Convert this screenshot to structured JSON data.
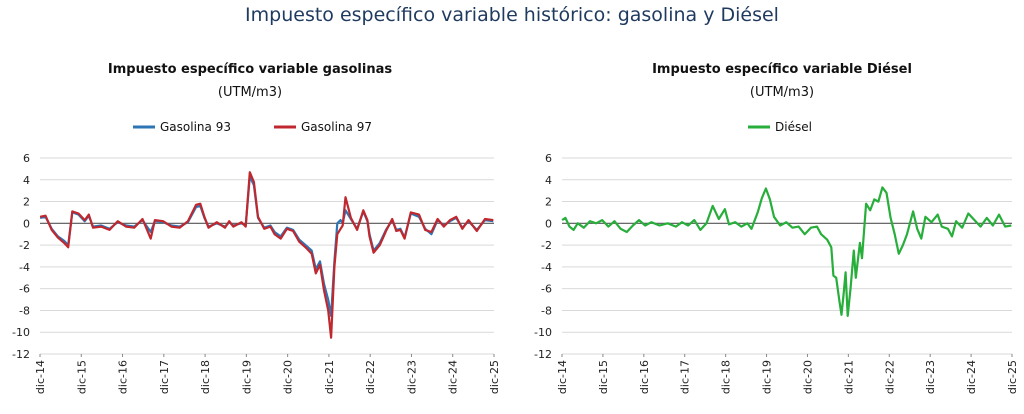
{
  "main_title": "Impuesto específico variable histórico: gasolina y Diésel",
  "colors": {
    "gasolina93": "#2e75b6",
    "gasolina97": "#c0282f",
    "diesel": "#27ae3b",
    "grid": "#d9d9d9"
  },
  "chart_data": [
    {
      "type": "line",
      "title": "Impuesto específico variable gasolinas",
      "subtitle": "(UTM/m3)",
      "legend_position": "top",
      "grid": true,
      "ylim": [
        -12,
        6
      ],
      "yticks": [
        6,
        4,
        2,
        0,
        -2,
        -4,
        -6,
        -8,
        -10,
        -12
      ],
      "xticks": [
        "dic-14",
        "dic-15",
        "dic-16",
        "dic-17",
        "dic-18",
        "dic-19",
        "dic-20",
        "dic-21",
        "dic-22",
        "dic-23",
        "dic-24",
        "dic-25"
      ],
      "x_range": [
        2014.917,
        2025.917
      ],
      "series": [
        {
          "name": "Gasolina 93",
          "color_key": "gasolina93",
          "points": [
            [
              2014.92,
              0.5
            ],
            [
              2015.05,
              0.6
            ],
            [
              2015.2,
              -0.5
            ],
            [
              2015.35,
              -1.2
            ],
            [
              2015.5,
              -1.6
            ],
            [
              2015.6,
              -2.0
            ],
            [
              2015.7,
              1.0
            ],
            [
              2015.85,
              0.8
            ],
            [
              2016.0,
              0.2
            ],
            [
              2016.1,
              0.7
            ],
            [
              2016.2,
              -0.3
            ],
            [
              2016.4,
              -0.2
            ],
            [
              2016.6,
              -0.5
            ],
            [
              2016.8,
              0.1
            ],
            [
              2017.0,
              -0.2
            ],
            [
              2017.2,
              -0.3
            ],
            [
              2017.4,
              0.3
            ],
            [
              2017.6,
              -0.8
            ],
            [
              2017.7,
              0.2
            ],
            [
              2017.9,
              0.1
            ],
            [
              2018.1,
              -0.2
            ],
            [
              2018.3,
              -0.3
            ],
            [
              2018.5,
              0.1
            ],
            [
              2018.7,
              1.5
            ],
            [
              2018.8,
              1.6
            ],
            [
              2018.9,
              0.5
            ],
            [
              2019.0,
              -0.3
            ],
            [
              2019.2,
              0.0
            ],
            [
              2019.4,
              -0.3
            ],
            [
              2019.5,
              0.1
            ],
            [
              2019.6,
              -0.2
            ],
            [
              2019.8,
              0.0
            ],
            [
              2019.9,
              -0.2
            ],
            [
              2020.0,
              4.3
            ],
            [
              2020.1,
              3.5
            ],
            [
              2020.2,
              0.5
            ],
            [
              2020.35,
              -0.4
            ],
            [
              2020.5,
              -0.2
            ],
            [
              2020.6,
              -0.8
            ],
            [
              2020.75,
              -1.2
            ],
            [
              2020.9,
              -0.4
            ],
            [
              2021.05,
              -0.6
            ],
            [
              2021.2,
              -1.5
            ],
            [
              2021.35,
              -2.0
            ],
            [
              2021.5,
              -2.5
            ],
            [
              2021.6,
              -4.2
            ],
            [
              2021.7,
              -3.5
            ],
            [
              2021.8,
              -5.6
            ],
            [
              2021.9,
              -7.0
            ],
            [
              2021.97,
              -8.5
            ],
            [
              2022.05,
              -3.5
            ],
            [
              2022.12,
              0.0
            ],
            [
              2022.2,
              0.3
            ],
            [
              2022.25,
              0.0
            ],
            [
              2022.32,
              1.2
            ],
            [
              2022.45,
              0.4
            ],
            [
              2022.6,
              -0.5
            ],
            [
              2022.75,
              1.1
            ],
            [
              2022.85,
              0.2
            ],
            [
              2022.9,
              -1.0
            ],
            [
              2023.0,
              -2.5
            ],
            [
              2023.15,
              -1.8
            ],
            [
              2023.3,
              -0.6
            ],
            [
              2023.45,
              0.3
            ],
            [
              2023.55,
              -0.6
            ],
            [
              2023.65,
              -0.5
            ],
            [
              2023.75,
              -1.3
            ],
            [
              2023.9,
              0.9
            ],
            [
              2024.1,
              0.6
            ],
            [
              2024.25,
              -0.5
            ],
            [
              2024.4,
              -1.0
            ],
            [
              2024.55,
              0.3
            ],
            [
              2024.7,
              -0.2
            ],
            [
              2024.85,
              0.2
            ],
            [
              2025.0,
              0.5
            ],
            [
              2025.15,
              -0.4
            ],
            [
              2025.3,
              0.2
            ],
            [
              2025.5,
              -0.6
            ],
            [
              2025.7,
              0.3
            ],
            [
              2025.9,
              0.2
            ]
          ]
        },
        {
          "name": "Gasolina 97",
          "color_key": "gasolina97",
          "points": [
            [
              2014.92,
              0.6
            ],
            [
              2015.05,
              0.7
            ],
            [
              2015.2,
              -0.6
            ],
            [
              2015.35,
              -1.3
            ],
            [
              2015.5,
              -1.8
            ],
            [
              2015.6,
              -2.2
            ],
            [
              2015.7,
              1.1
            ],
            [
              2015.85,
              0.9
            ],
            [
              2016.0,
              0.3
            ],
            [
              2016.1,
              0.8
            ],
            [
              2016.2,
              -0.4
            ],
            [
              2016.4,
              -0.3
            ],
            [
              2016.6,
              -0.6
            ],
            [
              2016.8,
              0.2
            ],
            [
              2017.0,
              -0.3
            ],
            [
              2017.2,
              -0.4
            ],
            [
              2017.4,
              0.4
            ],
            [
              2017.6,
              -1.4
            ],
            [
              2017.7,
              0.3
            ],
            [
              2017.9,
              0.2
            ],
            [
              2018.1,
              -0.3
            ],
            [
              2018.3,
              -0.4
            ],
            [
              2018.5,
              0.2
            ],
            [
              2018.7,
              1.7
            ],
            [
              2018.8,
              1.8
            ],
            [
              2018.9,
              0.6
            ],
            [
              2019.0,
              -0.4
            ],
            [
              2019.2,
              0.1
            ],
            [
              2019.4,
              -0.4
            ],
            [
              2019.5,
              0.2
            ],
            [
              2019.6,
              -0.3
            ],
            [
              2019.8,
              0.1
            ],
            [
              2019.9,
              -0.3
            ],
            [
              2020.0,
              4.7
            ],
            [
              2020.1,
              3.8
            ],
            [
              2020.2,
              0.6
            ],
            [
              2020.35,
              -0.5
            ],
            [
              2020.5,
              -0.3
            ],
            [
              2020.6,
              -1.0
            ],
            [
              2020.75,
              -1.4
            ],
            [
              2020.9,
              -0.5
            ],
            [
              2021.05,
              -0.7
            ],
            [
              2021.2,
              -1.7
            ],
            [
              2021.35,
              -2.2
            ],
            [
              2021.5,
              -2.8
            ],
            [
              2021.6,
              -4.6
            ],
            [
              2021.7,
              -3.8
            ],
            [
              2021.8,
              -6.2
            ],
            [
              2021.9,
              -8.0
            ],
            [
              2021.97,
              -10.5
            ],
            [
              2022.05,
              -4.0
            ],
            [
              2022.12,
              -1.0
            ],
            [
              2022.2,
              -0.5
            ],
            [
              2022.25,
              -0.2
            ],
            [
              2022.32,
              2.4
            ],
            [
              2022.45,
              0.5
            ],
            [
              2022.6,
              -0.6
            ],
            [
              2022.75,
              1.2
            ],
            [
              2022.85,
              0.3
            ],
            [
              2022.9,
              -1.2
            ],
            [
              2023.0,
              -2.7
            ],
            [
              2023.15,
              -2.0
            ],
            [
              2023.3,
              -0.7
            ],
            [
              2023.45,
              0.4
            ],
            [
              2023.55,
              -0.7
            ],
            [
              2023.65,
              -0.6
            ],
            [
              2023.75,
              -1.4
            ],
            [
              2023.9,
              1.0
            ],
            [
              2024.1,
              0.8
            ],
            [
              2024.25,
              -0.6
            ],
            [
              2024.4,
              -0.8
            ],
            [
              2024.55,
              0.4
            ],
            [
              2024.7,
              -0.3
            ],
            [
              2024.85,
              0.3
            ],
            [
              2025.0,
              0.6
            ],
            [
              2025.15,
              -0.5
            ],
            [
              2025.3,
              0.3
            ],
            [
              2025.5,
              -0.7
            ],
            [
              2025.7,
              0.4
            ],
            [
              2025.9,
              0.3
            ]
          ]
        }
      ]
    },
    {
      "type": "line",
      "title": "Impuesto específico variable Diésel",
      "subtitle": "(UTM/m3)",
      "legend_position": "top",
      "grid": true,
      "ylim": [
        -12,
        6
      ],
      "yticks": [
        6,
        4,
        2,
        0,
        -2,
        -4,
        -6,
        -8,
        -10,
        -12
      ],
      "xticks": [
        "dic-14",
        "dic-15",
        "dic-16",
        "dic-17",
        "dic-18",
        "dic-19",
        "dic-20",
        "dic-21",
        "dic-22",
        "dic-23",
        "dic-24",
        "dic-25"
      ],
      "x_range": [
        2014.917,
        2025.917
      ],
      "series": [
        {
          "name": "Diésel",
          "color_key": "diesel",
          "points": [
            [
              2014.92,
              0.3
            ],
            [
              2015.0,
              0.5
            ],
            [
              2015.1,
              -0.3
            ],
            [
              2015.2,
              -0.6
            ],
            [
              2015.3,
              0.0
            ],
            [
              2015.45,
              -0.4
            ],
            [
              2015.6,
              0.2
            ],
            [
              2015.75,
              0.0
            ],
            [
              2015.9,
              0.3
            ],
            [
              2016.05,
              -0.3
            ],
            [
              2016.2,
              0.2
            ],
            [
              2016.35,
              -0.5
            ],
            [
              2016.5,
              -0.8
            ],
            [
              2016.65,
              -0.2
            ],
            [
              2016.8,
              0.3
            ],
            [
              2016.95,
              -0.2
            ],
            [
              2017.1,
              0.1
            ],
            [
              2017.3,
              -0.2
            ],
            [
              2017.5,
              0.0
            ],
            [
              2017.7,
              -0.3
            ],
            [
              2017.85,
              0.1
            ],
            [
              2018.0,
              -0.2
            ],
            [
              2018.15,
              0.3
            ],
            [
              2018.3,
              -0.6
            ],
            [
              2018.45,
              0.0
            ],
            [
              2018.6,
              1.6
            ],
            [
              2018.75,
              0.4
            ],
            [
              2018.9,
              1.3
            ],
            [
              2019.0,
              -0.1
            ],
            [
              2019.15,
              0.1
            ],
            [
              2019.3,
              -0.3
            ],
            [
              2019.45,
              0.0
            ],
            [
              2019.55,
              -0.5
            ],
            [
              2019.7,
              1.0
            ],
            [
              2019.8,
              2.3
            ],
            [
              2019.9,
              3.2
            ],
            [
              2020.0,
              2.2
            ],
            [
              2020.1,
              0.6
            ],
            [
              2020.25,
              -0.2
            ],
            [
              2020.4,
              0.1
            ],
            [
              2020.55,
              -0.4
            ],
            [
              2020.7,
              -0.3
            ],
            [
              2020.85,
              -1.0
            ],
            [
              2021.0,
              -0.4
            ],
            [
              2021.15,
              -0.3
            ],
            [
              2021.25,
              -1.0
            ],
            [
              2021.4,
              -1.5
            ],
            [
              2021.5,
              -2.2
            ],
            [
              2021.55,
              -4.8
            ],
            [
              2021.62,
              -5.0
            ],
            [
              2021.7,
              -7.2
            ],
            [
              2021.75,
              -8.4
            ],
            [
              2021.8,
              -6.5
            ],
            [
              2021.85,
              -4.5
            ],
            [
              2021.9,
              -8.5
            ],
            [
              2021.97,
              -6.0
            ],
            [
              2022.05,
              -2.5
            ],
            [
              2022.1,
              -5.0
            ],
            [
              2022.2,
              -1.8
            ],
            [
              2022.25,
              -3.2
            ],
            [
              2022.35,
              1.8
            ],
            [
              2022.45,
              1.2
            ],
            [
              2022.55,
              2.2
            ],
            [
              2022.65,
              2.0
            ],
            [
              2022.75,
              3.3
            ],
            [
              2022.85,
              2.8
            ],
            [
              2022.95,
              0.5
            ],
            [
              2023.05,
              -1.0
            ],
            [
              2023.15,
              -2.8
            ],
            [
              2023.25,
              -2.0
            ],
            [
              2023.35,
              -1.0
            ],
            [
              2023.5,
              1.1
            ],
            [
              2023.6,
              -0.5
            ],
            [
              2023.7,
              -1.4
            ],
            [
              2023.8,
              0.6
            ],
            [
              2023.95,
              0.1
            ],
            [
              2024.1,
              0.8
            ],
            [
              2024.2,
              -0.3
            ],
            [
              2024.35,
              -0.5
            ],
            [
              2024.45,
              -1.2
            ],
            [
              2024.55,
              0.2
            ],
            [
              2024.7,
              -0.4
            ],
            [
              2024.85,
              0.9
            ],
            [
              2025.0,
              0.3
            ],
            [
              2025.15,
              -0.3
            ],
            [
              2025.3,
              0.5
            ],
            [
              2025.45,
              -0.2
            ],
            [
              2025.6,
              0.8
            ],
            [
              2025.75,
              -0.3
            ],
            [
              2025.9,
              -0.2
            ]
          ]
        }
      ]
    }
  ]
}
